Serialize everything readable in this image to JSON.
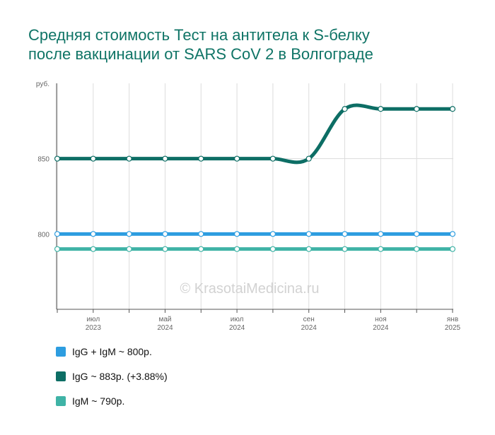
{
  "title": {
    "line1": "Средняя стоимость Тест на антитела к S-белку",
    "line2": "после вакцинации от SARS CoV 2 в Волгограде"
  },
  "watermark": "© KrasotaiMedicina.ru",
  "legend": [
    {
      "label": "IgG + IgM ~ 800р.",
      "color": "#2d9de0"
    },
    {
      "label": "IgG ~ 883р. (+3.88%)",
      "color": "#0d6e65"
    },
    {
      "label": "IgM ~ 790р.",
      "color": "#3fb3a6"
    }
  ],
  "chart_data": {
    "type": "line",
    "ylabel": "руб.",
    "ylim": [
      750,
      900
    ],
    "yticks": [
      800,
      850
    ],
    "x_ticks": [
      {
        "month": "июл",
        "year": "2023"
      },
      {
        "month": "май",
        "year": "2024"
      },
      {
        "month": "июл",
        "year": "2024"
      },
      {
        "month": "сен",
        "year": "2024"
      },
      {
        "month": "ноя",
        "year": "2024"
      },
      {
        "month": "янв",
        "year": "2025"
      }
    ],
    "x": [
      "2023-05",
      "2023-07",
      "2024-03",
      "2024-05",
      "2024-06",
      "2024-07",
      "2024-08",
      "2024-09",
      "2024-10",
      "2024-11",
      "2024-12",
      "2025-01"
    ],
    "series": [
      {
        "name": "IgG + IgM",
        "color": "#2d9de0",
        "values": [
          800,
          800,
          800,
          800,
          800,
          800,
          800,
          800,
          800,
          800,
          800,
          800
        ]
      },
      {
        "name": "IgG",
        "color": "#0d6e65",
        "values": [
          850,
          850,
          850,
          850,
          850,
          850,
          850,
          850,
          883,
          883,
          883,
          883
        ]
      },
      {
        "name": "IgM",
        "color": "#3fb3a6",
        "values": [
          790,
          790,
          790,
          790,
          790,
          790,
          790,
          790,
          790,
          790,
          790,
          790
        ]
      }
    ]
  }
}
